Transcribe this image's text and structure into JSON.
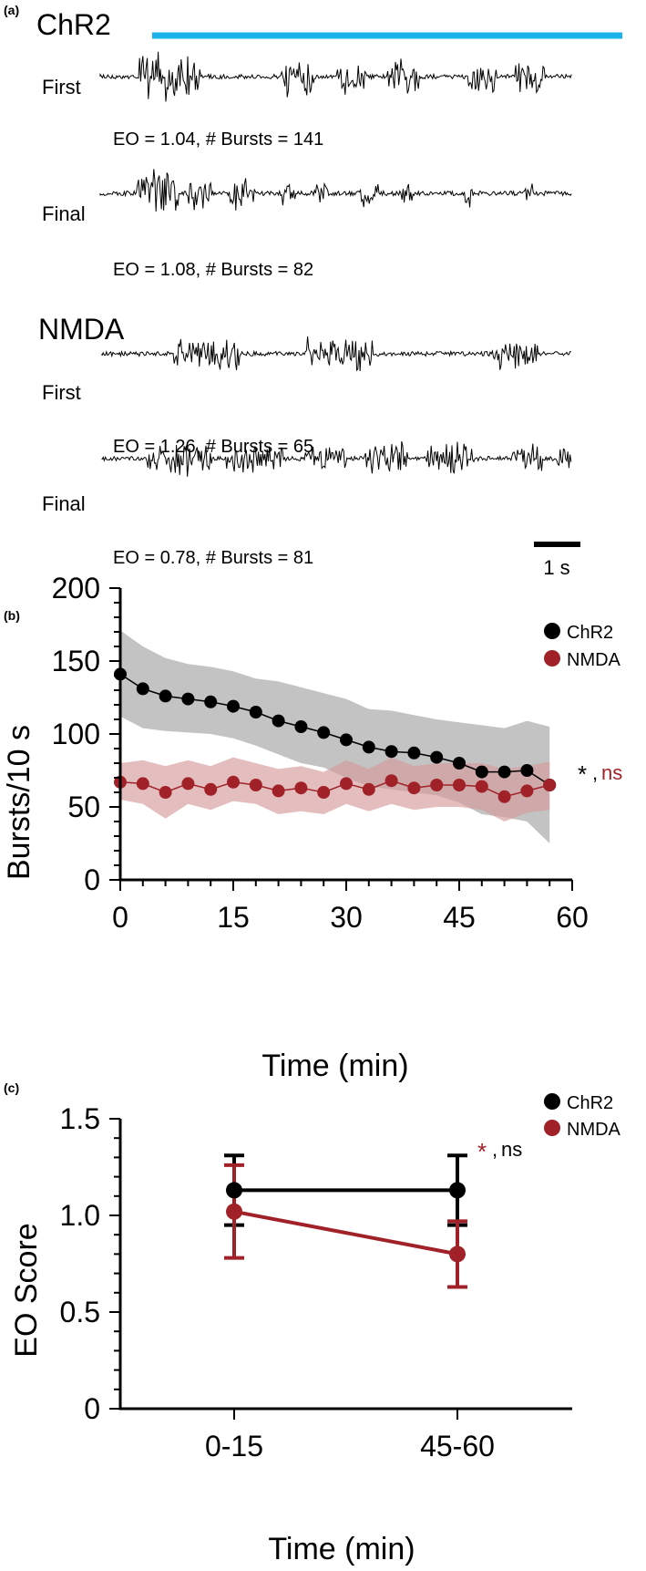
{
  "panel_a": {
    "label": "(a)",
    "stim_bar_color": "#1ab4ea",
    "groups": [
      {
        "title": "ChR2",
        "traces": [
          {
            "label": "First",
            "caption": "EO = 1.04, # Bursts = 141"
          },
          {
            "label": "Final",
            "caption": "EO = 1.08, # Bursts = 82"
          }
        ]
      },
      {
        "title": "NMDA",
        "traces": [
          {
            "label": "First",
            "caption": "EO = 1.26, # Bursts = 65"
          },
          {
            "label": "Final",
            "caption": "EO = 0.78, # Bursts = 81"
          }
        ]
      }
    ],
    "scale_bar_label": "1 s"
  },
  "chart_data": [
    {
      "panel": "(b)",
      "type": "line",
      "xlabel": "Time (min)",
      "ylabel": "Bursts/10 s",
      "xlim": [
        0,
        60
      ],
      "ylim": [
        0,
        200
      ],
      "xticks": [
        0,
        15,
        30,
        45,
        60
      ],
      "yticks": [
        0,
        50,
        100,
        150,
        200
      ],
      "legend_position": "top-right",
      "annotation": {
        "star": "*",
        "sep": ",",
        "ns": "ns"
      },
      "series": [
        {
          "name": "ChR2",
          "color": "#000000",
          "band_color": "#b8b8b8",
          "x": [
            0,
            3,
            6,
            9,
            12,
            15,
            18,
            21,
            24,
            27,
            30,
            33,
            36,
            39,
            42,
            45,
            48,
            51,
            54,
            57
          ],
          "y": [
            141,
            131,
            126,
            124,
            122,
            119,
            115,
            109,
            105,
            101,
            96,
            91,
            88,
            87,
            84,
            80,
            74,
            74,
            75,
            65
          ],
          "upper": [
            171,
            160,
            152,
            148,
            146,
            143,
            138,
            136,
            132,
            128,
            124,
            117,
            116,
            113,
            110,
            108,
            106,
            104,
            109,
            105
          ],
          "lower": [
            112,
            104,
            102,
            101,
            100,
            97,
            92,
            86,
            80,
            77,
            70,
            64,
            62,
            60,
            58,
            53,
            45,
            43,
            40,
            25
          ]
        },
        {
          "name": "NMDA",
          "color": "#a02228",
          "band_color": "#d59b9d",
          "x": [
            0,
            3,
            6,
            9,
            12,
            15,
            18,
            21,
            24,
            27,
            30,
            33,
            36,
            39,
            42,
            45,
            48,
            51,
            54,
            57
          ],
          "y": [
            67,
            66,
            60,
            66,
            62,
            67,
            65,
            61,
            63,
            60,
            66,
            62,
            68,
            63,
            65,
            65,
            64,
            57,
            61,
            65
          ],
          "upper": [
            80,
            82,
            78,
            82,
            78,
            84,
            80,
            76,
            78,
            74,
            82,
            76,
            84,
            78,
            80,
            80,
            80,
            76,
            78,
            81
          ],
          "lower": [
            55,
            52,
            42,
            52,
            48,
            54,
            52,
            45,
            47,
            45,
            52,
            47,
            52,
            48,
            50,
            50,
            48,
            40,
            46,
            48
          ]
        }
      ]
    },
    {
      "panel": "(c)",
      "type": "line",
      "xlabel": "Time (min)",
      "ylabel": "EO Score",
      "categories": [
        "0-15",
        "45-60"
      ],
      "ylim": [
        0,
        1.5
      ],
      "yticks": [
        "0",
        "0.5",
        "1.0",
        "1.5"
      ],
      "legend_position": "top-right",
      "annotation": {
        "star": "*",
        "sep": ",",
        "ns": "ns"
      },
      "series": [
        {
          "name": "ChR2",
          "color": "#000000",
          "values": [
            1.13,
            1.13
          ],
          "err_upper": [
            1.31,
            1.31
          ],
          "err_lower": [
            0.95,
            0.95
          ]
        },
        {
          "name": "NMDA",
          "color": "#a02228",
          "values": [
            1.02,
            0.8
          ],
          "err_upper": [
            1.26,
            0.97
          ],
          "err_lower": [
            0.78,
            0.63
          ]
        }
      ]
    }
  ]
}
